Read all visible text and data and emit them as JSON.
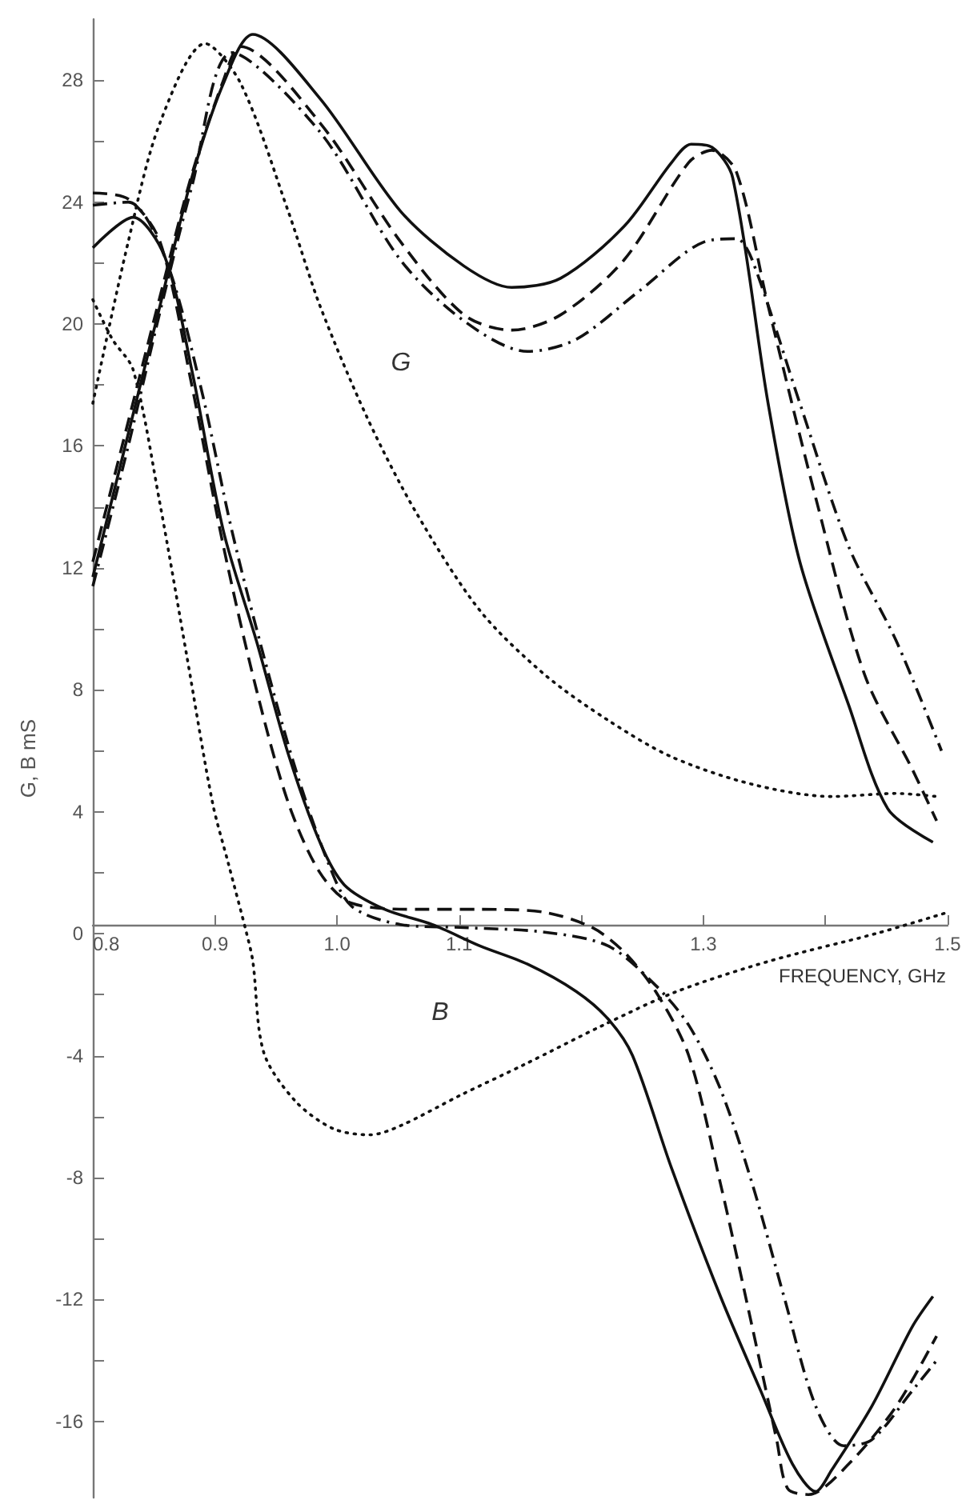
{
  "chart_data": {
    "type": "line",
    "xlabel": "FREQUENCY, GHz",
    "ylabel": "G, B mS",
    "marker": "none",
    "xlim": [
      0.8,
      1.5
    ],
    "ylim": [
      -18.5,
      30
    ],
    "xticks": [
      {
        "value": 0.8,
        "label": "0.8"
      },
      {
        "value": 0.9,
        "label": "0.9"
      },
      {
        "value": 1.0,
        "label": "1.0"
      },
      {
        "value": 1.1,
        "label": "1.1"
      },
      {
        "value": 1.2,
        "label": null
      },
      {
        "value": 1.3,
        "label": "1.3"
      },
      {
        "value": 1.4,
        "label": null
      },
      {
        "value": 1.5,
        "label": "1.5"
      }
    ],
    "yticks": [
      -16,
      {
        "value": -14,
        "label": null
      },
      -12,
      {
        "value": -10,
        "label": null
      },
      -8,
      {
        "value": -6,
        "label": null
      },
      -4,
      {
        "value": -2,
        "label": null
      },
      0,
      {
        "value": 2,
        "label": null
      },
      4,
      {
        "value": 6,
        "label": null
      },
      8,
      {
        "value": 10,
        "label": null
      },
      12,
      {
        "value": 14,
        "label": null
      },
      16,
      {
        "value": 18,
        "label": null
      },
      20,
      {
        "value": 22,
        "label": null
      },
      24,
      {
        "value": 26,
        "label": null
      },
      28
    ],
    "annotations": [
      "G",
      "B"
    ],
    "series": [
      {
        "color": "#111111",
        "line_style": "solid",
        "x": [
          0.8,
          0.829,
          0.855,
          0.881,
          0.907,
          0.931,
          0.986,
          1.052,
          1.104,
          1.143,
          1.183,
          1.235,
          1.274,
          1.29,
          1.307,
          1.324,
          1.353,
          1.379,
          1.419,
          1.451,
          1.488
        ],
        "values": [
          11.7,
          16.4,
          20.6,
          24.8,
          27.9,
          29.5,
          27.4,
          23.7,
          21.9,
          21.2,
          21.5,
          23.2,
          25.3,
          25.9,
          25.8,
          24.8,
          17.4,
          12.2,
          7.5,
          4.1,
          3.0
        ]
      },
      {
        "color": "#111111",
        "line_style": "dashed",
        "x": [
          0.8,
          0.829,
          0.855,
          0.881,
          0.907,
          0.921,
          0.986,
          1.052,
          1.104,
          1.143,
          1.183,
          1.235,
          1.288,
          1.307,
          1.327,
          1.353,
          1.392,
          1.432,
          1.471,
          1.491
        ],
        "values": [
          12.2,
          16.8,
          20.9,
          24.9,
          28.0,
          29.1,
          26.6,
          22.7,
          20.3,
          19.8,
          20.3,
          22.1,
          25.3,
          25.7,
          25.0,
          20.6,
          14.3,
          8.5,
          5.4,
          3.7
        ]
      },
      {
        "color": "#111111",
        "line_style": "dashdot",
        "x": [
          0.8,
          0.829,
          0.855,
          0.881,
          0.914,
          0.986,
          1.052,
          1.104,
          1.156,
          1.196,
          1.248,
          1.301,
          1.327,
          1.34,
          1.379,
          1.419,
          1.458,
          1.495
        ],
        "values": [
          11.4,
          16.0,
          20.4,
          24.5,
          28.9,
          26.3,
          22.1,
          20.1,
          19.1,
          19.5,
          21.1,
          22.7,
          22.8,
          22.1,
          17.4,
          12.7,
          9.6,
          6.0
        ]
      },
      {
        "color": "#111111",
        "line_style": "dotted",
        "x": [
          0.8,
          0.829,
          0.855,
          0.892,
          0.921,
          0.96,
          0.986,
          1.025,
          1.065,
          1.117,
          1.17,
          1.222,
          1.274,
          1.34,
          1.405,
          1.458,
          1.491
        ],
        "values": [
          17.4,
          22.7,
          26.6,
          29.2,
          27.9,
          23.7,
          20.6,
          16.9,
          13.8,
          10.6,
          8.5,
          7.0,
          5.8,
          4.9,
          4.5,
          4.6,
          4.5
        ]
      },
      {
        "color": "#111111",
        "line_style": "solid",
        "x": [
          0.8,
          0.833,
          0.859,
          0.881,
          0.907,
          0.934,
          0.96,
          0.986,
          1.006,
          1.039,
          1.078,
          1.117,
          1.156,
          1.196,
          1.222,
          1.242,
          1.274,
          1.314,
          1.347,
          1.373,
          1.392,
          1.405,
          1.438,
          1.471,
          1.488
        ],
        "values": [
          22.5,
          23.5,
          22.2,
          18.5,
          13.2,
          9.6,
          5.9,
          3.0,
          1.6,
          0.8,
          0.3,
          -0.4,
          -1.0,
          -1.9,
          -2.8,
          -4.0,
          -7.7,
          -11.9,
          -15.0,
          -17.4,
          -18.3,
          -17.6,
          -15.5,
          -12.9,
          -11.9
        ]
      },
      {
        "color": "#111111",
        "line_style": "dashed",
        "x": [
          0.8,
          0.829,
          0.855,
          0.881,
          0.907,
          0.934,
          0.96,
          0.986,
          1.012,
          1.065,
          1.117,
          1.17,
          1.209,
          1.235,
          1.261,
          1.288,
          1.314,
          1.34,
          1.36,
          1.369,
          1.386,
          1.419,
          1.458,
          1.491
        ],
        "values": [
          24.3,
          24.1,
          22.7,
          18.0,
          12.7,
          8.0,
          4.3,
          2.0,
          1.0,
          0.8,
          0.8,
          0.7,
          0.2,
          -0.6,
          -1.9,
          -4.0,
          -8.2,
          -12.9,
          -16.6,
          -18.2,
          -18.4,
          -17.4,
          -15.5,
          -13.2
        ]
      },
      {
        "color": "#111111",
        "line_style": "dashdot",
        "x": [
          0.8,
          0.829,
          0.859,
          0.888,
          0.914,
          0.94,
          0.966,
          0.993,
          1.012,
          1.052,
          1.104,
          1.17,
          1.222,
          1.261,
          1.288,
          1.314,
          1.34,
          1.366,
          1.392,
          1.415,
          1.438,
          1.471,
          1.491
        ],
        "values": [
          23.9,
          24.0,
          22.2,
          18.0,
          13.2,
          9.1,
          5.4,
          2.3,
          0.9,
          0.3,
          0.2,
          0.05,
          -0.4,
          -1.7,
          -3.0,
          -5.1,
          -8.2,
          -11.9,
          -15.5,
          -16.8,
          -16.6,
          -15.0,
          -14.0
        ]
      },
      {
        "color": "#111111",
        "line_style": "dotted",
        "x": [
          0.8,
          0.816,
          0.833,
          0.855,
          0.877,
          0.898,
          0.911,
          0.926,
          0.931,
          0.94,
          0.966,
          0.997,
          1.027,
          1.052,
          1.101,
          1.153,
          1.218,
          1.278,
          1.354,
          1.441,
          1.5
        ],
        "values": [
          20.8,
          19.5,
          18.5,
          14.1,
          9.1,
          4.3,
          2.3,
          0.0,
          -0.9,
          -3.9,
          -5.5,
          -6.4,
          -6.6,
          -6.3,
          -5.3,
          -4.3,
          -3.0,
          -1.9,
          -0.9,
          0.0,
          0.7
        ]
      }
    ]
  }
}
